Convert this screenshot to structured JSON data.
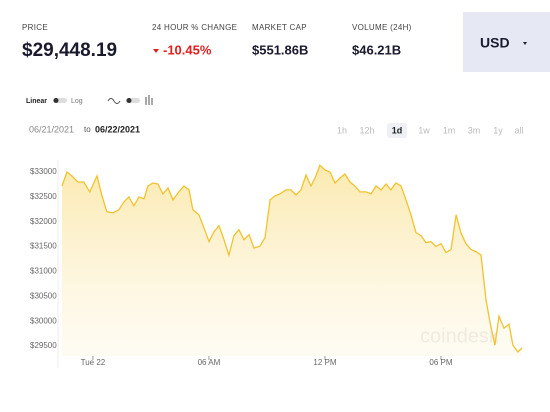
{
  "header": {
    "price_label": "PRICE",
    "price": "$29,448.19",
    "change_label": "24 HOUR % CHANGE",
    "change": "-10.45%",
    "market_cap_label": "MARKET CAP",
    "market_cap": "$551.86B",
    "volume_label": "VOLUME (24H)",
    "volume": "$46.21B",
    "currency": "USD"
  },
  "controls": {
    "linear": "Linear",
    "log": "Log",
    "date_from": "06/21/2021",
    "to": "to",
    "date_to": "06/22/2021",
    "ranges": [
      "1h",
      "12h",
      "1d",
      "1w",
      "1m",
      "3m",
      "1y",
      "all"
    ],
    "active_range": "1d"
  },
  "chart_data": {
    "type": "area",
    "watermark": "coindesk",
    "color": "#f2c22e",
    "grid": false,
    "x": [
      -1.6,
      -1.34,
      -1.09,
      -0.78,
      -0.47,
      -0.16,
      0.21,
      0.47,
      0.72,
      1.03,
      1.34,
      1.6,
      1.86,
      2.12,
      2.38,
      2.64,
      2.84,
      3.1,
      3.36,
      3.62,
      3.88,
      4.14,
      4.4,
      4.71,
      4.97,
      5.17,
      5.48,
      5.74,
      6.0,
      6.26,
      6.52,
      6.78,
      7.03,
      7.29,
      7.55,
      7.81,
      8.07,
      8.33,
      8.64,
      8.9,
      9.16,
      9.41,
      9.67,
      9.98,
      10.24,
      10.5,
      10.76,
      11.02,
      11.28,
      11.53,
      11.74,
      12.0,
      12.26,
      12.52,
      12.78,
      13.03,
      13.29,
      13.55,
      13.81,
      14.12,
      14.38,
      14.64,
      14.9,
      15.16,
      15.41,
      15.67,
      15.93,
      16.19,
      16.45,
      16.71,
      16.97,
      17.22,
      17.48,
      17.74,
      18.0,
      18.26,
      18.52,
      18.78,
      19.03,
      19.29,
      19.55,
      19.81,
      20.07,
      20.33,
      20.53,
      20.79,
      21.0,
      21.26,
      21.52,
      21.72,
      21.98,
      22.19
    ],
    "values": [
      32720,
      33000,
      32920,
      32800,
      32800,
      32600,
      32920,
      32520,
      32200,
      32180,
      32240,
      32400,
      32500,
      32320,
      32500,
      32460,
      32720,
      32780,
      32760,
      32560,
      32680,
      32440,
      32580,
      32720,
      32640,
      32240,
      32140,
      31880,
      31600,
      31800,
      31920,
      31640,
      31330,
      31720,
      31840,
      31640,
      31740,
      31470,
      31510,
      31680,
      32440,
      32520,
      32560,
      32640,
      32640,
      32540,
      32640,
      32940,
      32720,
      32920,
      33140,
      33040,
      33000,
      32780,
      32880,
      32960,
      32800,
      32720,
      32600,
      32600,
      32560,
      32720,
      32640,
      32760,
      32640,
      32780,
      32720,
      32440,
      32140,
      31780,
      31720,
      31580,
      31600,
      31500,
      31560,
      31380,
      31440,
      32140,
      31780,
      31560,
      31440,
      31400,
      31330,
      30430,
      29990,
      29520,
      30100,
      29860,
      29940,
      29520,
      29380,
      29460
    ],
    "xlim": [
      -1.6,
      22.19
    ],
    "xticks": [
      {
        "value": 0,
        "label": "Tue 22"
      },
      {
        "value": 6,
        "label": "06 AM"
      },
      {
        "value": 12,
        "label": "12 PM"
      },
      {
        "value": 18,
        "label": "06 PM"
      }
    ],
    "ylim": [
      29300,
      33250
    ],
    "yticks": [
      {
        "value": 33000,
        "label": "$33000"
      },
      {
        "value": 32500,
        "label": "$32500"
      },
      {
        "value": 32000,
        "label": "$32000"
      },
      {
        "value": 31500,
        "label": "$31500"
      },
      {
        "value": 31000,
        "label": "$31000"
      },
      {
        "value": 30500,
        "label": "$30500"
      },
      {
        "value": 30000,
        "label": "$30000"
      },
      {
        "value": 29500,
        "label": "$29500"
      }
    ]
  }
}
